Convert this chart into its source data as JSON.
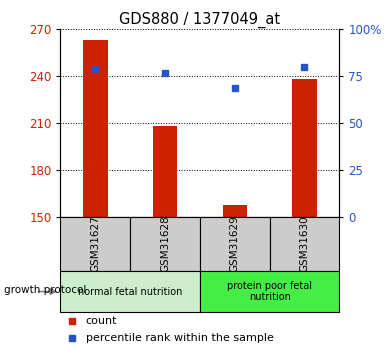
{
  "title": "GDS880 / 1377049_at",
  "samples": [
    "GSM31627",
    "GSM31628",
    "GSM31629",
    "GSM31630"
  ],
  "counts": [
    263,
    208,
    158,
    238
  ],
  "percentiles": [
    79,
    77,
    69,
    80
  ],
  "ylim_left": [
    150,
    270
  ],
  "ylim_right": [
    0,
    100
  ],
  "yticks_left": [
    150,
    180,
    210,
    240,
    270
  ],
  "yticks_right": [
    0,
    25,
    50,
    75,
    100
  ],
  "ytick_labels_right": [
    "0",
    "25",
    "50",
    "75",
    "100%"
  ],
  "bar_color": "#cc2200",
  "dot_color": "#2255cc",
  "bar_width": 0.35,
  "groups": [
    {
      "label": "normal fetal nutrition",
      "samples": [
        0,
        1
      ],
      "color": "#cceecc"
    },
    {
      "label": "protein poor fetal\nnutrition",
      "samples": [
        2,
        3
      ],
      "color": "#44ee44"
    }
  ],
  "group_row_label": "growth protocol",
  "legend_count_label": "count",
  "legend_percentile_label": "percentile rank within the sample",
  "tick_label_color_left": "#cc2200",
  "tick_label_color_right": "#2255cc",
  "title_color": "#000000"
}
